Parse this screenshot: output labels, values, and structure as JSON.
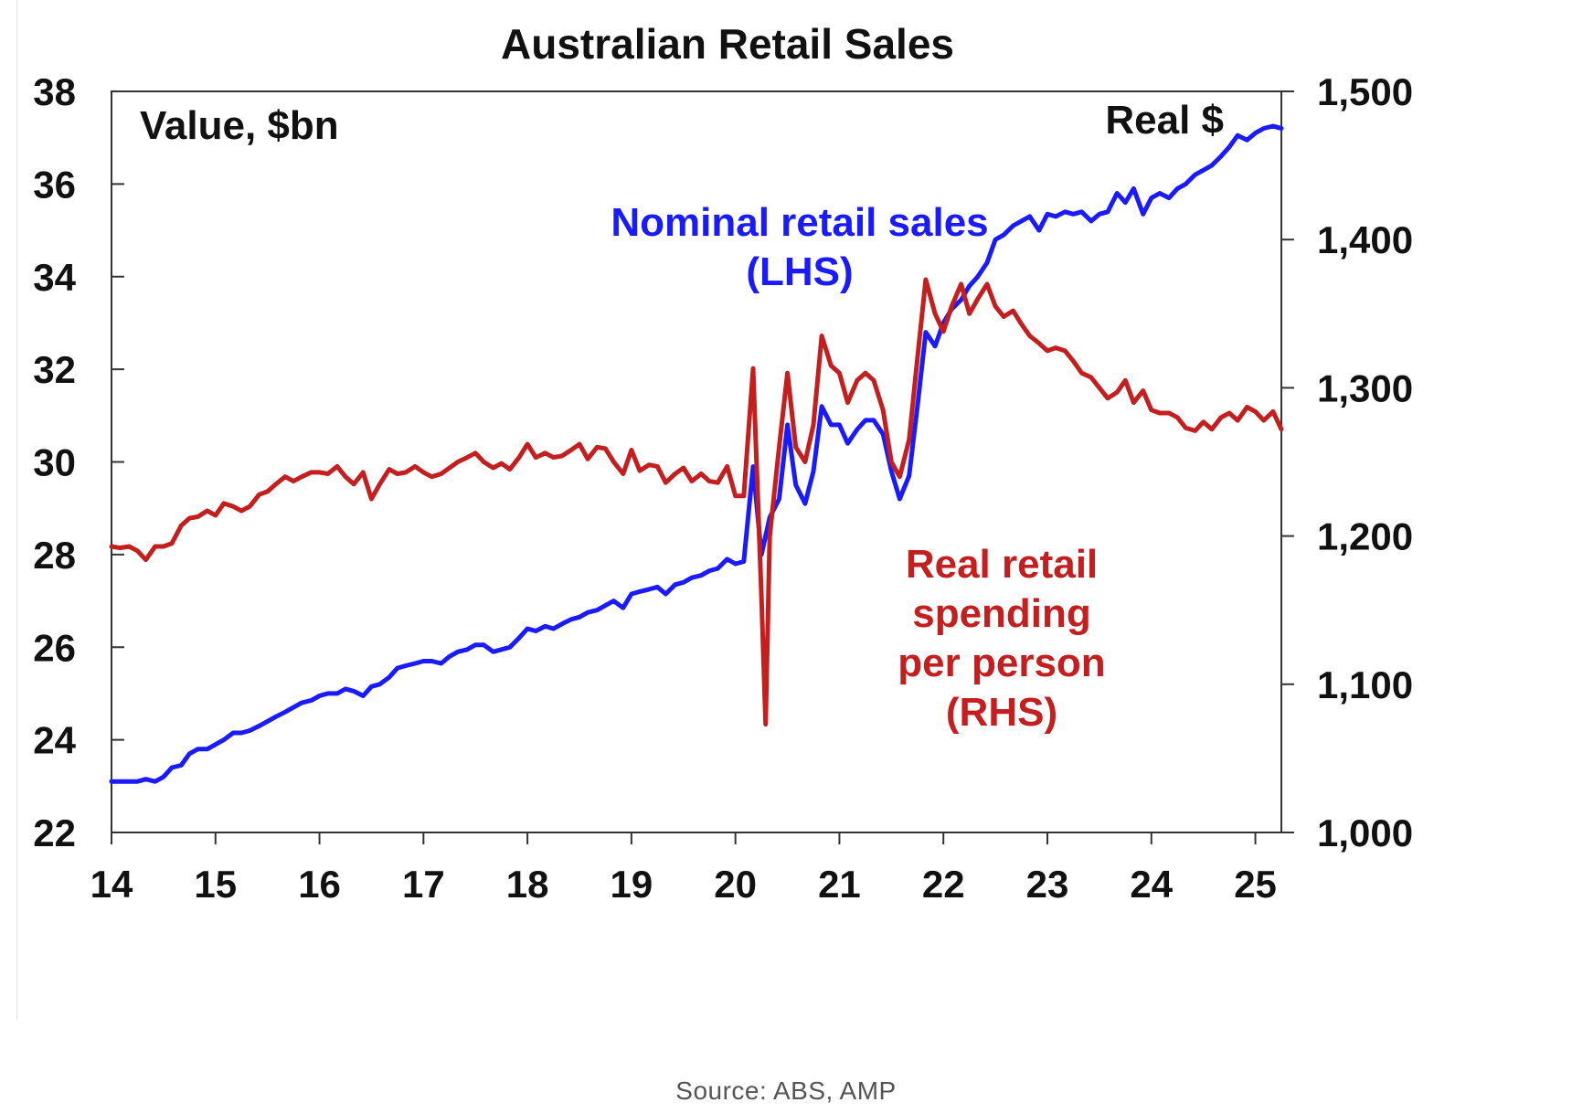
{
  "colors": {
    "nominal": "#1a1aff",
    "real": "#c41e1e",
    "axis": "#333333",
    "text": "#111111"
  },
  "source": "Source: ABS, AMP",
  "chart_data": {
    "type": "line",
    "title": "Australian Retail Sales",
    "left_axis_label": "Value, $bn",
    "right_axis_label": "Real $",
    "x_ticks": [
      "14",
      "15",
      "16",
      "17",
      "18",
      "19",
      "20",
      "21",
      "22",
      "23",
      "24",
      "25"
    ],
    "x_tick_values": [
      14,
      15,
      16,
      17,
      18,
      19,
      20,
      21,
      22,
      23,
      24,
      25
    ],
    "xlim": [
      14,
      25.25
    ],
    "ylim_left": [
      22,
      38
    ],
    "ylim_right": [
      1000,
      1500
    ],
    "left_ticks": [
      "22",
      "24",
      "26",
      "28",
      "30",
      "32",
      "34",
      "36",
      "38"
    ],
    "left_tick_values": [
      22,
      24,
      26,
      28,
      30,
      32,
      34,
      36,
      38
    ],
    "right_ticks": [
      "1,000",
      "1,100",
      "1,200",
      "1,300",
      "1,400",
      "1,500"
    ],
    "right_tick_values": [
      1000,
      1100,
      1200,
      1300,
      1400,
      1500
    ],
    "annotations": {
      "nominal": [
        "Nominal retail sales",
        "(LHS)"
      ],
      "real": [
        "Real retail",
        "spending",
        "per person",
        "(RHS)"
      ]
    },
    "series": [
      {
        "name": "Nominal retail sales (LHS)",
        "axis": "left",
        "points": [
          [
            14.0,
            23.1
          ],
          [
            14.25,
            23.1
          ],
          [
            14.33,
            23.15
          ],
          [
            14.42,
            23.1
          ],
          [
            14.5,
            23.2
          ],
          [
            14.58,
            23.4
          ],
          [
            14.67,
            23.45
          ],
          [
            14.75,
            23.7
          ],
          [
            14.83,
            23.8
          ],
          [
            14.92,
            23.8
          ],
          [
            15.0,
            23.9
          ],
          [
            15.08,
            24.0
          ],
          [
            15.17,
            24.15
          ],
          [
            15.25,
            24.15
          ],
          [
            15.33,
            24.2
          ],
          [
            15.42,
            24.3
          ],
          [
            15.5,
            24.4
          ],
          [
            15.58,
            24.5
          ],
          [
            15.67,
            24.6
          ],
          [
            15.75,
            24.7
          ],
          [
            15.83,
            24.8
          ],
          [
            15.92,
            24.85
          ],
          [
            16.0,
            24.95
          ],
          [
            16.08,
            25.0
          ],
          [
            16.17,
            25.0
          ],
          [
            16.25,
            25.1
          ],
          [
            16.33,
            25.05
          ],
          [
            16.42,
            24.95
          ],
          [
            16.5,
            25.15
          ],
          [
            16.58,
            25.2
          ],
          [
            16.67,
            25.35
          ],
          [
            16.75,
            25.55
          ],
          [
            16.83,
            25.6
          ],
          [
            16.92,
            25.65
          ],
          [
            17.0,
            25.7
          ],
          [
            17.08,
            25.7
          ],
          [
            17.17,
            25.65
          ],
          [
            17.25,
            25.8
          ],
          [
            17.33,
            25.9
          ],
          [
            17.42,
            25.95
          ],
          [
            17.5,
            26.05
          ],
          [
            17.58,
            26.05
          ],
          [
            17.67,
            25.9
          ],
          [
            17.75,
            25.95
          ],
          [
            17.83,
            26.0
          ],
          [
            17.92,
            26.2
          ],
          [
            18.0,
            26.4
          ],
          [
            18.08,
            26.35
          ],
          [
            18.17,
            26.45
          ],
          [
            18.25,
            26.4
          ],
          [
            18.33,
            26.5
          ],
          [
            18.42,
            26.6
          ],
          [
            18.5,
            26.65
          ],
          [
            18.58,
            26.75
          ],
          [
            18.67,
            26.8
          ],
          [
            18.75,
            26.9
          ],
          [
            18.83,
            27.0
          ],
          [
            18.92,
            26.85
          ],
          [
            19.0,
            27.15
          ],
          [
            19.08,
            27.2
          ],
          [
            19.17,
            27.25
          ],
          [
            19.25,
            27.3
          ],
          [
            19.33,
            27.15
          ],
          [
            19.42,
            27.35
          ],
          [
            19.5,
            27.4
          ],
          [
            19.58,
            27.5
          ],
          [
            19.67,
            27.55
          ],
          [
            19.75,
            27.65
          ],
          [
            19.83,
            27.7
          ],
          [
            19.92,
            27.9
          ],
          [
            20.0,
            27.8
          ],
          [
            20.08,
            27.85
          ],
          [
            20.17,
            29.9
          ],
          [
            20.25,
            28.0
          ],
          [
            20.33,
            28.8
          ],
          [
            20.42,
            29.2
          ],
          [
            20.5,
            30.8
          ],
          [
            20.58,
            29.5
          ],
          [
            20.67,
            29.1
          ],
          [
            20.75,
            29.8
          ],
          [
            20.83,
            31.2
          ],
          [
            20.92,
            30.8
          ],
          [
            21.0,
            30.8
          ],
          [
            21.08,
            30.4
          ],
          [
            21.17,
            30.7
          ],
          [
            21.25,
            30.9
          ],
          [
            21.33,
            30.9
          ],
          [
            21.42,
            30.6
          ],
          [
            21.5,
            29.8
          ],
          [
            21.58,
            29.2
          ],
          [
            21.67,
            29.7
          ],
          [
            21.75,
            31.2
          ],
          [
            21.83,
            32.8
          ],
          [
            21.92,
            32.5
          ],
          [
            22.0,
            33.0
          ],
          [
            22.08,
            33.3
          ],
          [
            22.17,
            33.5
          ],
          [
            22.25,
            33.8
          ],
          [
            22.33,
            34.0
          ],
          [
            22.42,
            34.3
          ],
          [
            22.5,
            34.8
          ],
          [
            22.58,
            34.9
          ],
          [
            22.67,
            35.1
          ],
          [
            22.75,
            35.2
          ],
          [
            22.83,
            35.3
          ],
          [
            22.92,
            35.0
          ],
          [
            23.0,
            35.35
          ],
          [
            23.08,
            35.3
          ],
          [
            23.17,
            35.4
          ],
          [
            23.25,
            35.35
          ],
          [
            23.33,
            35.4
          ],
          [
            23.42,
            35.2
          ],
          [
            23.5,
            35.35
          ],
          [
            23.58,
            35.4
          ],
          [
            23.67,
            35.8
          ],
          [
            23.75,
            35.6
          ],
          [
            23.83,
            35.9
          ],
          [
            23.92,
            35.35
          ],
          [
            24.0,
            35.7
          ],
          [
            24.08,
            35.8
          ],
          [
            24.17,
            35.7
          ],
          [
            24.25,
            35.9
          ],
          [
            24.33,
            36.0
          ],
          [
            24.42,
            36.2
          ],
          [
            24.5,
            36.3
          ],
          [
            24.58,
            36.4
          ],
          [
            24.67,
            36.6
          ],
          [
            24.75,
            36.8
          ],
          [
            24.83,
            37.05
          ],
          [
            24.92,
            36.95
          ],
          [
            25.0,
            37.1
          ],
          [
            25.08,
            37.2
          ],
          [
            25.17,
            37.25
          ],
          [
            25.25,
            37.2
          ]
        ]
      },
      {
        "name": "Real retail spending per person (RHS)",
        "axis": "right",
        "points": [
          [
            14.0,
            1193
          ],
          [
            14.08,
            1192
          ],
          [
            14.17,
            1193
          ],
          [
            14.25,
            1190
          ],
          [
            14.33,
            1184
          ],
          [
            14.42,
            1193
          ],
          [
            14.5,
            1193
          ],
          [
            14.58,
            1195
          ],
          [
            14.67,
            1207
          ],
          [
            14.75,
            1212
          ],
          [
            14.83,
            1213
          ],
          [
            14.92,
            1217
          ],
          [
            15.0,
            1214
          ],
          [
            15.08,
            1222
          ],
          [
            15.17,
            1220
          ],
          [
            15.25,
            1217
          ],
          [
            15.33,
            1220
          ],
          [
            15.42,
            1228
          ],
          [
            15.5,
            1230
          ],
          [
            15.58,
            1235
          ],
          [
            15.67,
            1240
          ],
          [
            15.75,
            1237
          ],
          [
            15.83,
            1240
          ],
          [
            15.92,
            1243
          ],
          [
            16.0,
            1243
          ],
          [
            16.08,
            1242
          ],
          [
            16.17,
            1247
          ],
          [
            16.25,
            1240
          ],
          [
            16.33,
            1235
          ],
          [
            16.42,
            1243
          ],
          [
            16.5,
            1225
          ],
          [
            16.58,
            1235
          ],
          [
            16.67,
            1245
          ],
          [
            16.75,
            1242
          ],
          [
            16.83,
            1243
          ],
          [
            16.92,
            1247
          ],
          [
            17.0,
            1243
          ],
          [
            17.08,
            1240
          ],
          [
            17.17,
            1242
          ],
          [
            17.25,
            1246
          ],
          [
            17.33,
            1250
          ],
          [
            17.42,
            1253
          ],
          [
            17.5,
            1256
          ],
          [
            17.58,
            1250
          ],
          [
            17.67,
            1246
          ],
          [
            17.75,
            1249
          ],
          [
            17.83,
            1245
          ],
          [
            17.92,
            1253
          ],
          [
            18.0,
            1262
          ],
          [
            18.08,
            1253
          ],
          [
            18.17,
            1256
          ],
          [
            18.25,
            1253
          ],
          [
            18.33,
            1254
          ],
          [
            18.42,
            1258
          ],
          [
            18.5,
            1262
          ],
          [
            18.58,
            1252
          ],
          [
            18.67,
            1260
          ],
          [
            18.75,
            1259
          ],
          [
            18.83,
            1250
          ],
          [
            18.92,
            1242
          ],
          [
            19.0,
            1258
          ],
          [
            19.08,
            1244
          ],
          [
            19.17,
            1248
          ],
          [
            19.25,
            1247
          ],
          [
            19.33,
            1236
          ],
          [
            19.42,
            1242
          ],
          [
            19.5,
            1246
          ],
          [
            19.58,
            1237
          ],
          [
            19.67,
            1242
          ],
          [
            19.75,
            1237
          ],
          [
            19.83,
            1236
          ],
          [
            19.92,
            1247
          ],
          [
            20.0,
            1227
          ],
          [
            20.08,
            1227
          ],
          [
            20.17,
            1313
          ],
          [
            20.25,
            1160
          ],
          [
            20.29,
            1073
          ],
          [
            20.33,
            1200
          ],
          [
            20.42,
            1260
          ],
          [
            20.5,
            1310
          ],
          [
            20.58,
            1260
          ],
          [
            20.67,
            1250
          ],
          [
            20.75,
            1275
          ],
          [
            20.83,
            1335
          ],
          [
            20.92,
            1315
          ],
          [
            21.0,
            1310
          ],
          [
            21.08,
            1290
          ],
          [
            21.17,
            1305
          ],
          [
            21.25,
            1310
          ],
          [
            21.33,
            1305
          ],
          [
            21.42,
            1285
          ],
          [
            21.5,
            1250
          ],
          [
            21.58,
            1240
          ],
          [
            21.67,
            1265
          ],
          [
            21.75,
            1320
          ],
          [
            21.83,
            1373
          ],
          [
            21.92,
            1350
          ],
          [
            22.0,
            1338
          ],
          [
            22.08,
            1355
          ],
          [
            22.17,
            1370
          ],
          [
            22.25,
            1350
          ],
          [
            22.33,
            1360
          ],
          [
            22.42,
            1370
          ],
          [
            22.5,
            1355
          ],
          [
            22.58,
            1348
          ],
          [
            22.67,
            1352
          ],
          [
            22.75,
            1343
          ],
          [
            22.83,
            1335
          ],
          [
            22.92,
            1330
          ],
          [
            23.0,
            1325
          ],
          [
            23.08,
            1327
          ],
          [
            23.17,
            1325
          ],
          [
            23.25,
            1318
          ],
          [
            23.33,
            1310
          ],
          [
            23.42,
            1307
          ],
          [
            23.5,
            1300
          ],
          [
            23.58,
            1293
          ],
          [
            23.67,
            1297
          ],
          [
            23.75,
            1305
          ],
          [
            23.83,
            1290
          ],
          [
            23.92,
            1298
          ],
          [
            24.0,
            1285
          ],
          [
            24.08,
            1283
          ],
          [
            24.17,
            1283
          ],
          [
            24.25,
            1280
          ],
          [
            24.33,
            1273
          ],
          [
            24.42,
            1271
          ],
          [
            24.5,
            1277
          ],
          [
            24.58,
            1272
          ],
          [
            24.67,
            1280
          ],
          [
            24.75,
            1283
          ],
          [
            24.83,
            1278
          ],
          [
            24.92,
            1287
          ],
          [
            25.0,
            1284
          ],
          [
            25.08,
            1278
          ],
          [
            25.17,
            1284
          ],
          [
            25.25,
            1272
          ]
        ]
      }
    ]
  }
}
